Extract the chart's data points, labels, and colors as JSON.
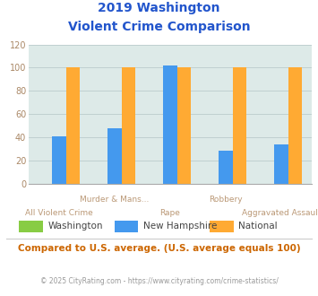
{
  "title_line1": "2019 Washington",
  "title_line2": "Violent Crime Comparison",
  "categories": [
    "All Violent Crime",
    "Murder & Mans...",
    "Rape",
    "Robbery",
    "Aggravated Assault"
  ],
  "row1_labels": {
    "1": "Murder & Mans...",
    "3": "Robbery"
  },
  "row2_labels": {
    "0": "All Violent Crime",
    "2": "Rape",
    "4": "Aggravated Assault"
  },
  "series": {
    "Washington": [
      0,
      0,
      0,
      0,
      0
    ],
    "New Hampshire": [
      41,
      48,
      102,
      28,
      34
    ],
    "National": [
      100,
      100,
      100,
      100,
      100
    ]
  },
  "colors": {
    "Washington": "#88cc44",
    "New Hampshire": "#4499ee",
    "National": "#ffaa33"
  },
  "ylim": [
    0,
    120
  ],
  "yticks": [
    0,
    20,
    40,
    60,
    80,
    100,
    120
  ],
  "plot_bg": "#ddeae8",
  "title_color": "#2255cc",
  "label_color": "#bb9977",
  "ytick_color": "#aa8866",
  "grid_color": "#bbcccc",
  "footer_text": "Compared to U.S. average. (U.S. average equals 100)",
  "copyright_text": "© 2025 CityRating.com - https://www.cityrating.com/crime-statistics/",
  "footer_color": "#cc6600",
  "copyright_color": "#999999",
  "legend_labels": [
    "Washington",
    "New Hampshire",
    "National"
  ]
}
